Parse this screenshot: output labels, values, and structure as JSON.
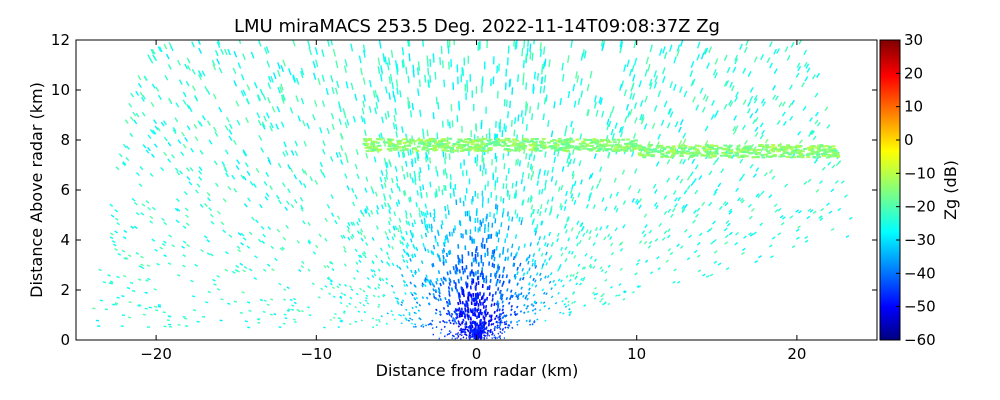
{
  "chart_data": {
    "type": "heatmap",
    "title": "LMU miraMACS 253.5 Deg. 2022-11-14T09:08:37Z  Zg",
    "xlabel": "Distance from radar (km)",
    "ylabel": "Distance Above radar  (km)",
    "xlim": [
      -25,
      25
    ],
    "ylim": [
      0,
      12
    ],
    "x_ticks": [
      -20,
      -10,
      0,
      10,
      20
    ],
    "x_tick_labels": [
      "−20",
      "−10",
      "0",
      "10",
      "20"
    ],
    "y_ticks": [
      0,
      2,
      4,
      6,
      8,
      10,
      12
    ],
    "y_tick_labels": [
      "0",
      "2",
      "4",
      "6",
      "8",
      "10",
      "12"
    ],
    "colorbar": {
      "label": "Zg (dB)",
      "range": [
        -60,
        30
      ],
      "ticks": [
        -60,
        -50,
        -40,
        -30,
        -20,
        -10,
        0,
        10,
        20,
        30
      ],
      "tick_labels": [
        "−60",
        "−50",
        "−40",
        "−30",
        "−20",
        "−10",
        "0",
        "10",
        "20",
        "30"
      ],
      "colormap": [
        "#00007f",
        "#0000ff",
        "#007fff",
        "#00ffff",
        "#7fff7f",
        "#ffff00",
        "#ff7f00",
        "#ff0000",
        "#7f0000"
      ]
    },
    "grid": false,
    "scan": {
      "upper_edge": [
        [
          -24.3,
          0.5
        ],
        [
          -21,
          11.9
        ],
        [
          -20.8,
          12
        ],
        [
          20.8,
          12
        ],
        [
          23.5,
          5
        ]
      ],
      "lower_edge": [
        [
          23.2,
          4.1
        ],
        [
          3,
          0.5
        ],
        [
          -24.3,
          0.5
        ]
      ]
    },
    "features": [
      {
        "kind": "noise_field",
        "value_range": [
          -28,
          -18
        ]
      },
      {
        "kind": "layer",
        "height_km": 7.8,
        "x_range": [
          -7,
          23
        ],
        "value": -18
      },
      {
        "kind": "core",
        "x_km": 0,
        "height_km": 1.2,
        "value": -50
      }
    ]
  }
}
